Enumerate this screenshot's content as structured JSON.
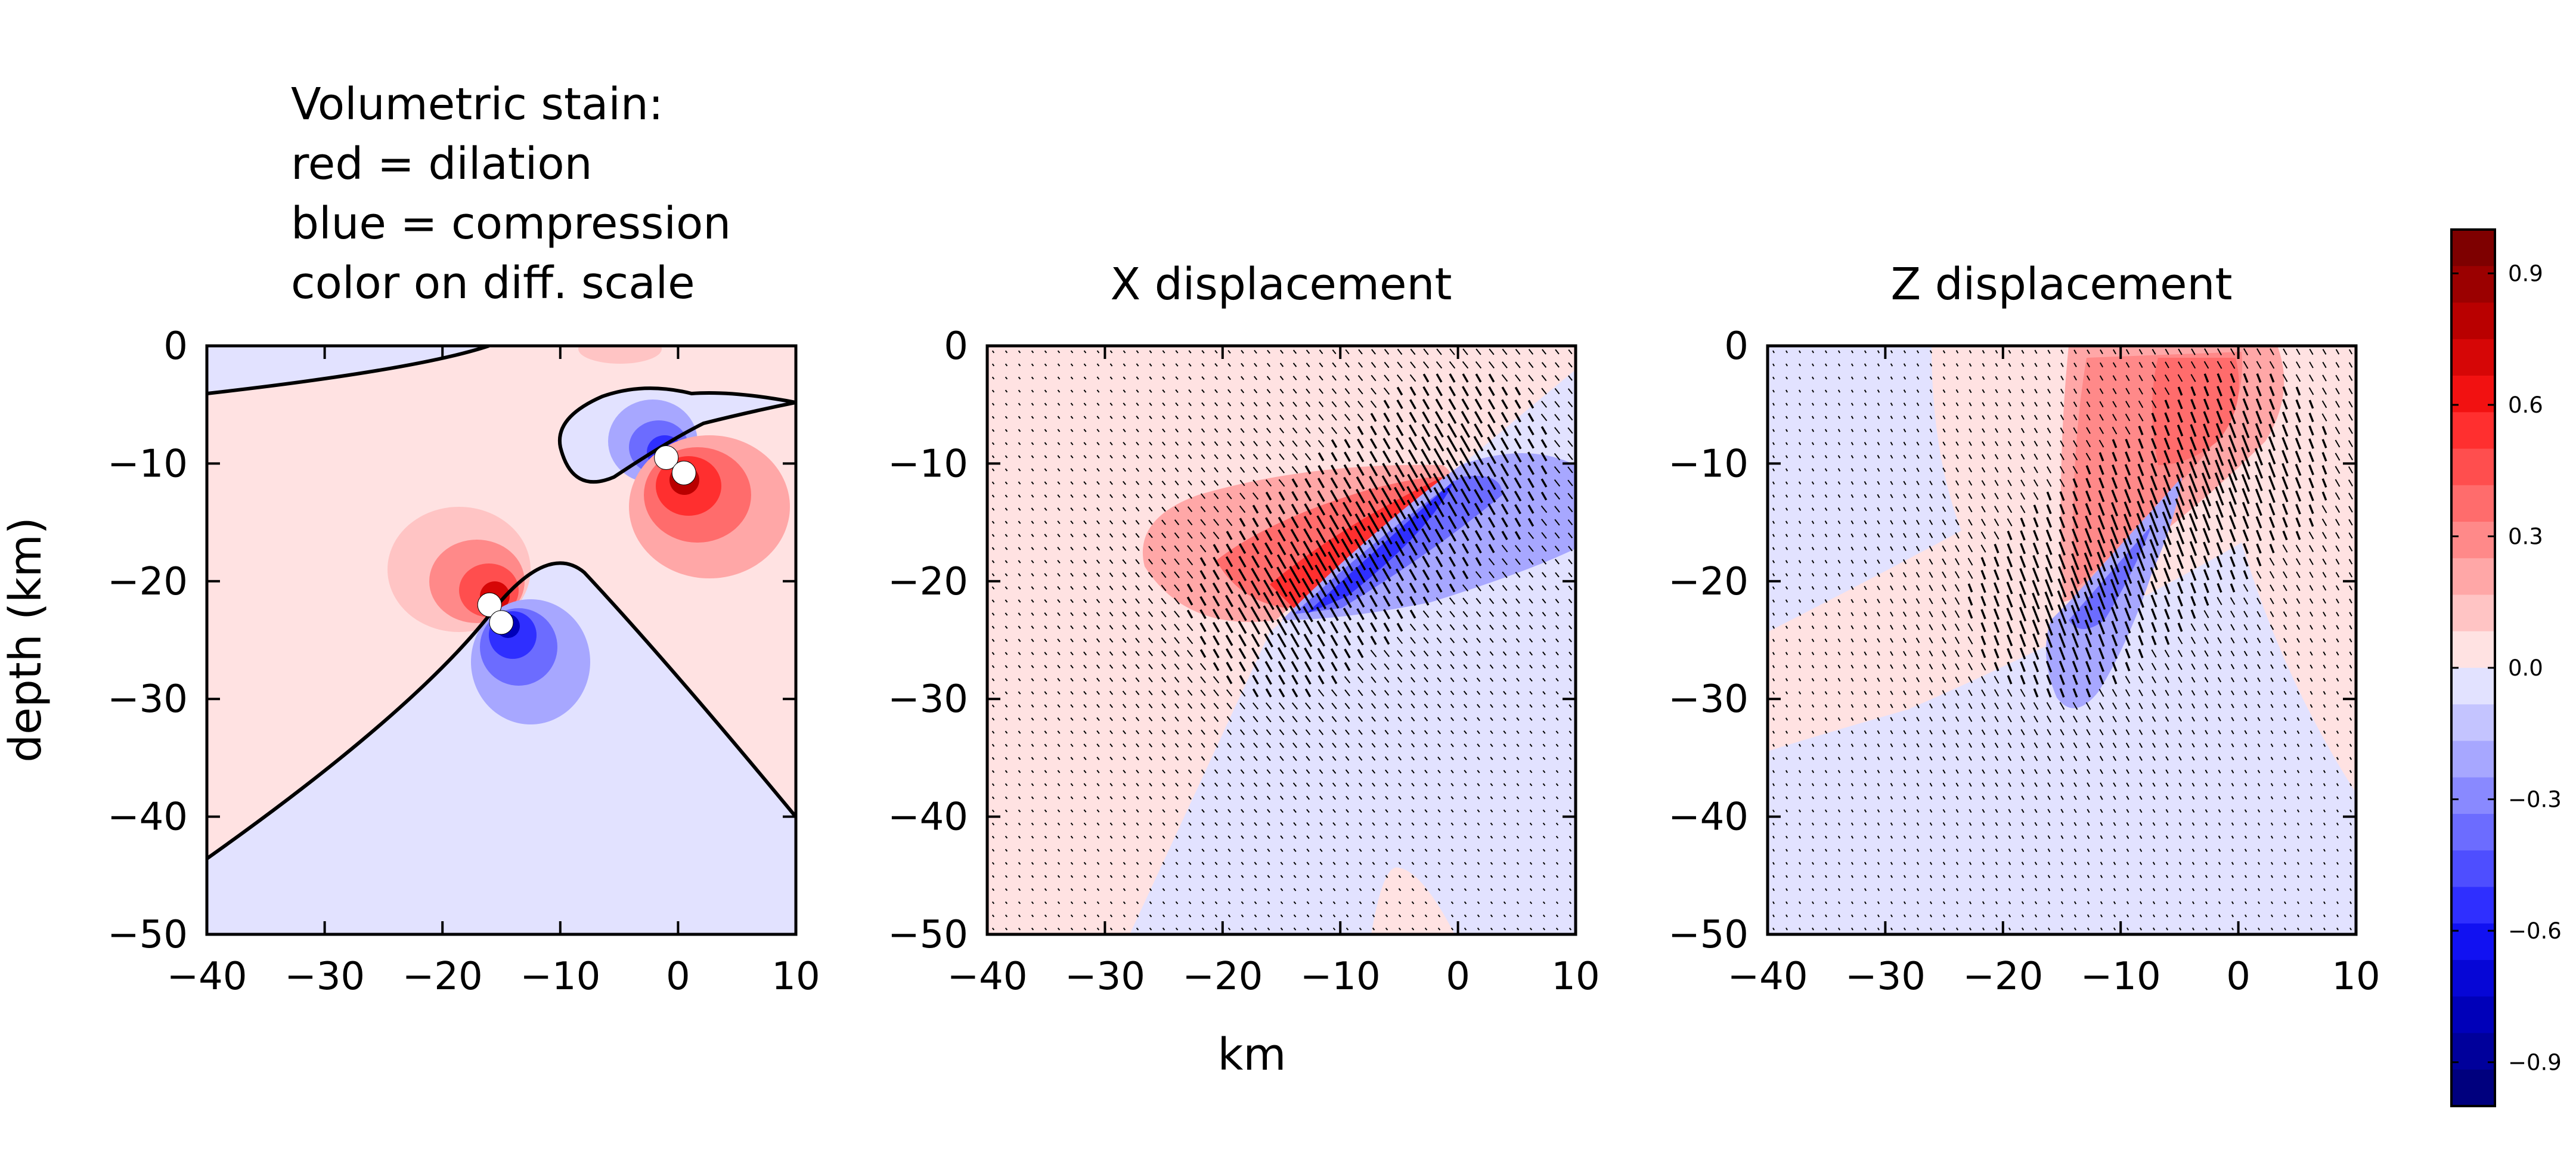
{
  "figure": {
    "annotation_lines": [
      "Volumetric stain:",
      "red = dilation",
      "blue = compression",
      "color on diff. scale"
    ],
    "shared_ylabel": "depth (km)",
    "shared_xlabel": "km"
  },
  "panels": [
    {
      "title": "",
      "key": "strain"
    },
    {
      "title": "X displacement",
      "key": "xdisp"
    },
    {
      "title": "Z displacement",
      "key": "zdisp"
    }
  ],
  "axes": {
    "xticks": [
      "−40",
      "−30",
      "−20",
      "−10",
      "0",
      "10"
    ],
    "yticks": [
      "0",
      "−10",
      "−20",
      "−30",
      "−40",
      "−50"
    ]
  },
  "colorbar": {
    "ticks": [
      "0.9",
      "0.6",
      "0.3",
      "0.0",
      "−0.3",
      "−0.6",
      "−0.9"
    ]
  },
  "colors": {
    "dilation_scale": [
      "#ffe2e2",
      "#ffc4c4",
      "#ffa7a7",
      "#ff8989",
      "#ff6c6c",
      "#ff4e4e",
      "#ff2f2f",
      "#f21111",
      "#d60606",
      "#b90000",
      "#9b0000",
      "#7e0000"
    ],
    "compression_scale": [
      "#e2e2ff",
      "#c4c4ff",
      "#a7a7ff",
      "#8989ff",
      "#6c6cff",
      "#4e4eff",
      "#2f2fff",
      "#1111f2",
      "#0606d6",
      "#0000b9",
      "#00009b",
      "#00007e"
    ],
    "contour_line": "#000000",
    "dislocation_marker": "#ffffff"
  },
  "chart_data": [
    {
      "type": "heatmap",
      "title": "",
      "annotation": "Volumetric stain: red = dilation, blue = compression, color on diff. scale",
      "xlabel": "km",
      "ylabel": "depth (km)",
      "xlim": [
        -40,
        10
      ],
      "ylim": [
        -50,
        0
      ],
      "xticks": [
        -40,
        -30,
        -20,
        -10,
        0,
        10
      ],
      "yticks": [
        0,
        -10,
        -20,
        -30,
        -40,
        -50
      ],
      "fault_endpoints": [
        [
          -16,
          -22
        ],
        [
          -15,
          -23.5
        ],
        [
          -1,
          -9.5
        ],
        [
          0.5,
          -10.8
        ]
      ],
      "lobes": [
        {
          "x": -18,
          "y": -20,
          "sign": "dilation"
        },
        {
          "x": -12,
          "y": -27,
          "sign": "compression"
        },
        {
          "x": -2,
          "y": -8,
          "sign": "compression"
        },
        {
          "x": 3,
          "y": -13,
          "sign": "dilation"
        }
      ]
    },
    {
      "type": "heatmap",
      "title": "X displacement",
      "xlabel": "km",
      "xlim": [
        -40,
        10
      ],
      "ylim": [
        -50,
        0
      ],
      "xticks": [
        -40,
        -30,
        -20,
        -10,
        0,
        10
      ],
      "yticks": [
        0,
        -10,
        -20,
        -30,
        -40,
        -50
      ],
      "overlay": "displacement arrows",
      "fault_trace": [
        [
          -15,
          -22
        ],
        [
          0,
          -10
        ]
      ],
      "clim": [
        -1,
        1
      ]
    },
    {
      "type": "heatmap",
      "title": "Z displacement",
      "xlabel": "km",
      "xlim": [
        -40,
        10
      ],
      "ylim": [
        -50,
        0
      ],
      "xticks": [
        -40,
        -30,
        -20,
        -10,
        0,
        10
      ],
      "yticks": [
        0,
        -10,
        -20,
        -30,
        -40,
        -50
      ],
      "overlay": "displacement arrows",
      "fault_trace": [
        [
          -15,
          -22
        ],
        [
          0,
          -10
        ]
      ],
      "clim": [
        -1,
        1
      ]
    }
  ]
}
